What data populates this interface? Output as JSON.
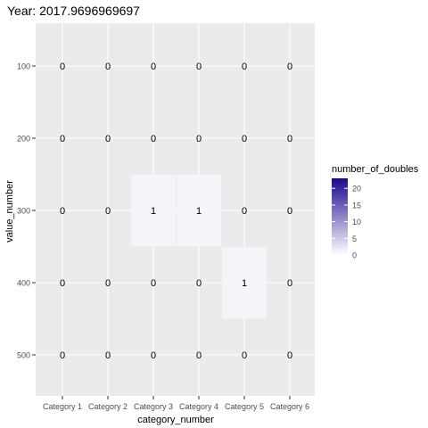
{
  "chart_data": {
    "type": "heatmap",
    "title": "Year: 2017.9696969697",
    "xlabel": "category_number",
    "ylabel": "value_number",
    "categories": [
      "Category 1",
      "Category 2",
      "Category 3",
      "Category 4",
      "Category 5",
      "Category 6"
    ],
    "y_values": [
      100,
      200,
      300,
      400,
      500
    ],
    "y_axis_reversed": true,
    "cells": [
      {
        "x": "Category 1",
        "y": 100,
        "value": 0
      },
      {
        "x": "Category 2",
        "y": 100,
        "value": 0
      },
      {
        "x": "Category 3",
        "y": 100,
        "value": 0
      },
      {
        "x": "Category 4",
        "y": 100,
        "value": 0
      },
      {
        "x": "Category 5",
        "y": 100,
        "value": 0
      },
      {
        "x": "Category 6",
        "y": 100,
        "value": 0
      },
      {
        "x": "Category 1",
        "y": 200,
        "value": 0
      },
      {
        "x": "Category 2",
        "y": 200,
        "value": 0
      },
      {
        "x": "Category 3",
        "y": 200,
        "value": 0
      },
      {
        "x": "Category 4",
        "y": 200,
        "value": 0
      },
      {
        "x": "Category 5",
        "y": 200,
        "value": 0
      },
      {
        "x": "Category 6",
        "y": 200,
        "value": 0
      },
      {
        "x": "Category 1",
        "y": 300,
        "value": 0
      },
      {
        "x": "Category 2",
        "y": 300,
        "value": 0
      },
      {
        "x": "Category 3",
        "y": 300,
        "value": 1
      },
      {
        "x": "Category 4",
        "y": 300,
        "value": 1
      },
      {
        "x": "Category 5",
        "y": 300,
        "value": 0
      },
      {
        "x": "Category 6",
        "y": 300,
        "value": 0
      },
      {
        "x": "Category 1",
        "y": 400,
        "value": 0
      },
      {
        "x": "Category 2",
        "y": 400,
        "value": 0
      },
      {
        "x": "Category 3",
        "y": 400,
        "value": 0
      },
      {
        "x": "Category 4",
        "y": 400,
        "value": 0
      },
      {
        "x": "Category 5",
        "y": 400,
        "value": 1
      },
      {
        "x": "Category 6",
        "y": 400,
        "value": 0
      },
      {
        "x": "Category 1",
        "y": 500,
        "value": 0
      },
      {
        "x": "Category 2",
        "y": 500,
        "value": 0
      },
      {
        "x": "Category 3",
        "y": 500,
        "value": 0
      },
      {
        "x": "Category 4",
        "y": 500,
        "value": 0
      },
      {
        "x": "Category 5",
        "y": 500,
        "value": 0
      },
      {
        "x": "Category 6",
        "y": 500,
        "value": 0
      }
    ],
    "legend": {
      "title": "number_of_doubles",
      "placement": "right",
      "ticks": [
        0,
        5,
        10,
        15,
        20
      ],
      "range": [
        0,
        23
      ],
      "low_color": "#ffffff",
      "high_color": "#1a0a8c"
    },
    "panel_background": "#ebebeb",
    "grid": true
  }
}
